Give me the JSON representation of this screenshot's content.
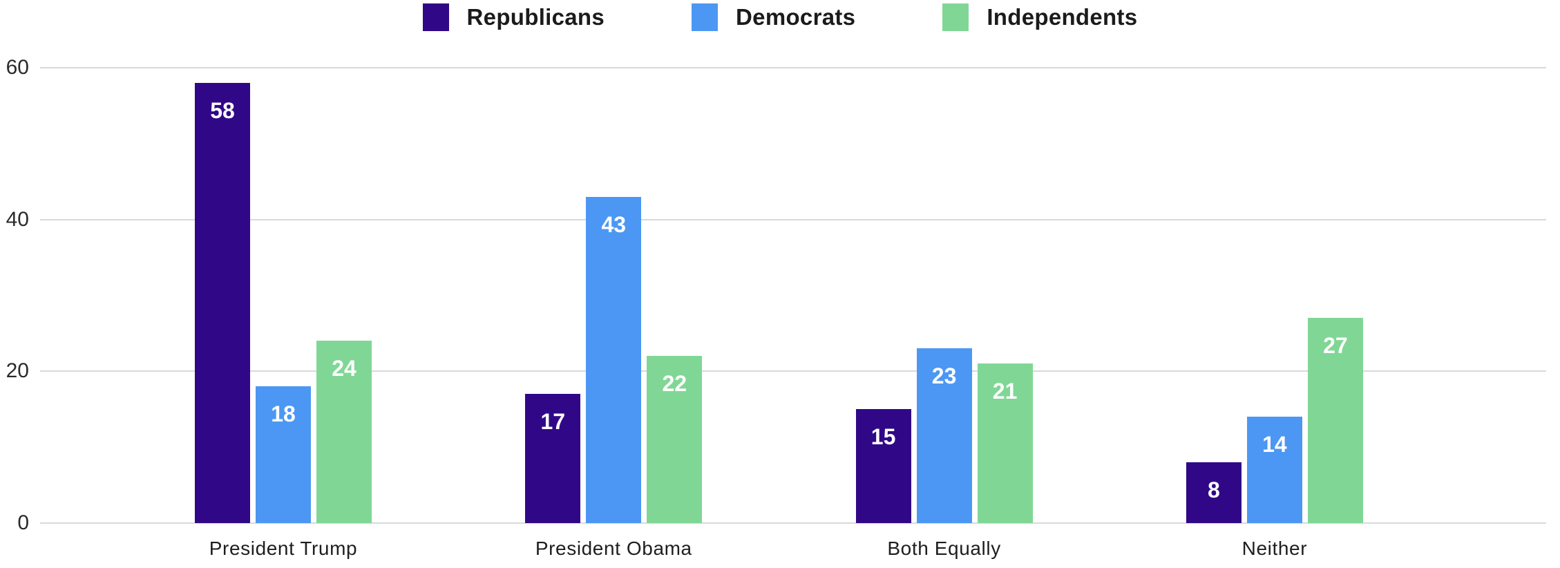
{
  "chart_data": {
    "type": "bar",
    "title": "",
    "xlabel": "",
    "ylabel": "",
    "categories": [
      "President Trump",
      "President Obama",
      "Both Equally",
      "Neither"
    ],
    "series": [
      {
        "name": "Republicans",
        "color": "#300887",
        "values": [
          58,
          17,
          15,
          8
        ]
      },
      {
        "name": "Democrats",
        "color": "#4c97f3",
        "values": [
          18,
          43,
          23,
          14
        ]
      },
      {
        "name": "Independents",
        "color": "#80d795",
        "values": [
          24,
          22,
          21,
          27
        ]
      }
    ],
    "ylim": [
      0,
      60
    ],
    "yticks": [
      0,
      20,
      40,
      60
    ],
    "grid": true,
    "legend_position": "top-center",
    "value_labels": true,
    "value_label_color": "#ffffff",
    "gridline_color": "#d9d9d9",
    "axis_text_color": "#2a2a2a",
    "background_color": "#ffffff"
  }
}
